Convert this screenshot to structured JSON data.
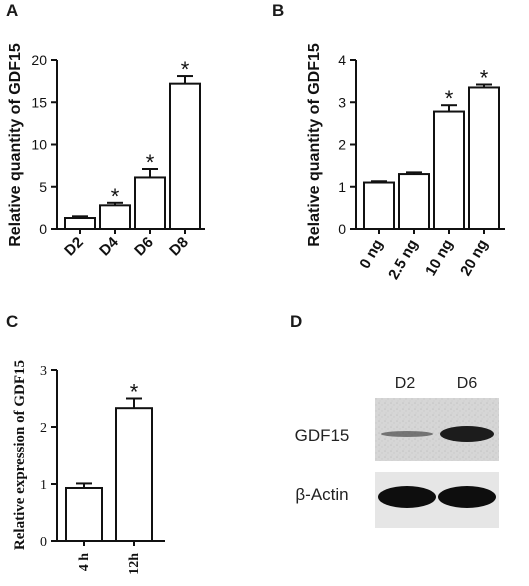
{
  "panels": {
    "A": {
      "letter": "A"
    },
    "B": {
      "letter": "B"
    },
    "C": {
      "letter": "C"
    },
    "D": {
      "letter": "D"
    }
  },
  "chart_data": [
    {
      "panel": "A",
      "type": "bar",
      "ylabel": "Relative quantity of GDF15",
      "categories": [
        "D2",
        "D4",
        "D6",
        "D8"
      ],
      "values": [
        1.3,
        2.8,
        6.1,
        17.2
      ],
      "errors": [
        0.2,
        0.3,
        1.0,
        0.9
      ],
      "significant": [
        false,
        true,
        true,
        true
      ],
      "ylim": [
        0,
        20
      ],
      "yticks": [
        0,
        5,
        10,
        15,
        20
      ],
      "grid": false
    },
    {
      "panel": "B",
      "type": "bar",
      "ylabel": "Relative quantity of GDF15",
      "categories": [
        "0 ng",
        "2.5 ng",
        "10 ng",
        "20 ng"
      ],
      "values": [
        1.1,
        1.3,
        2.78,
        3.35
      ],
      "errors": [
        0.03,
        0.04,
        0.15,
        0.07
      ],
      "significant": [
        false,
        false,
        true,
        true
      ],
      "ylim": [
        0,
        4
      ],
      "yticks": [
        0,
        1,
        2,
        3,
        4
      ],
      "grid": false
    },
    {
      "panel": "C",
      "type": "bar",
      "ylabel": "Relative expression of GDF15",
      "categories": [
        "4 h",
        "12h"
      ],
      "values": [
        0.93,
        2.33
      ],
      "errors": [
        0.08,
        0.17
      ],
      "significant": [
        false,
        true
      ],
      "ylim": [
        0,
        3
      ],
      "yticks": [
        0,
        1,
        2,
        3
      ],
      "grid": false
    }
  ],
  "blot": {
    "lanes": [
      "D2",
      "D6"
    ],
    "rows": [
      "GDF15",
      "β-Actin"
    ]
  },
  "significance_marker": "*"
}
